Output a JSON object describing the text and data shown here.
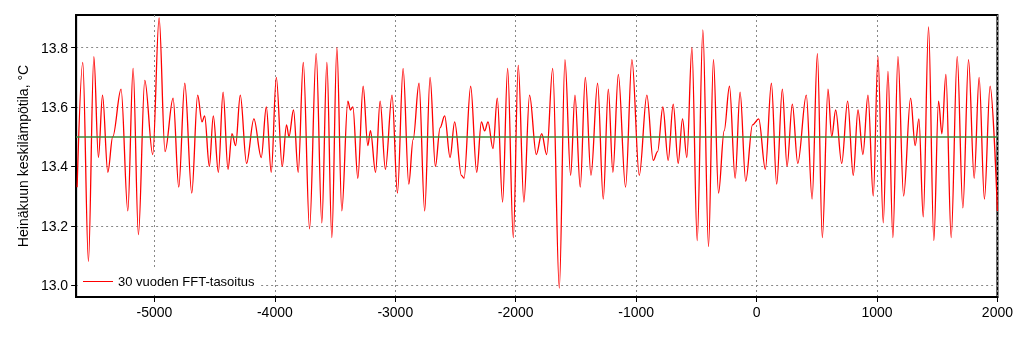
{
  "chart_data": {
    "type": "line",
    "ylabel": "Heinäkuun keskilämpötila, °C",
    "xlim": [
      -5650,
      2000
    ],
    "xticks": [
      -5000,
      -4000,
      -3000,
      -2000,
      -1000,
      0,
      1000,
      2000
    ],
    "ylim": [
      12.96,
      13.91
    ],
    "yticks": [
      {
        "value": 13,
        "label": "13.0"
      },
      13.2,
      13.4,
      13.6,
      13.8
    ],
    "grid": true,
    "legend": "bottom left",
    "marker": "none",
    "line_style": "solid",
    "ref_lines": [
      {
        "axis": "y",
        "value": 13.5,
        "color": "#3a8a3a",
        "line_style": "solid"
      }
    ],
    "series": [
      {
        "name": "30 vuoden FFT-tasoitus",
        "color": "#ff0000",
        "x": [
          -5642,
          -5595,
          -5548,
          -5503,
          -5465,
          -5431,
          -5387,
          -5346,
          -5277,
          -5221,
          -5177,
          -5133,
          -5080,
          -5014,
          -4961,
          -4912,
          -4845,
          -4798,
          -4748,
          -4690,
          -4641,
          -4605,
          -4583,
          -4544,
          -4511,
          -4469,
          -4430,
          -4389,
          -4356,
          -4326,
          -4287,
          -4235,
          -4174,
          -4113,
          -4071,
          -4030,
          -3988,
          -3939,
          -3903,
          -3883,
          -3845,
          -3806,
          -3764,
          -3712,
          -3657,
          -3610,
          -3568,
          -3527,
          -3485,
          -3444,
          -3394,
          -3372,
          -3352,
          -3311,
          -3267,
          -3228,
          -3206,
          -3164,
          -3126,
          -3082,
          -3027,
          -2982,
          -2935,
          -2888,
          -2852,
          -2803,
          -2756,
          -2711,
          -2667,
          -2628,
          -2590,
          -2545,
          -2507,
          -2451,
          -2429,
          -2374,
          -2324,
          -2285,
          -2258,
          -2230,
          -2189,
          -2153,
          -2109,
          -2067,
          -2020,
          -1979,
          -1932,
          -1885,
          -1829,
          -1784,
          -1743,
          -1693,
          -1638,
          -1591,
          -1544,
          -1508,
          -1464,
          -1422,
          -1375,
          -1320,
          -1273,
          -1231,
          -1193,
          -1148,
          -1088,
          -1035,
          -974,
          -911,
          -858,
          -822,
          -778,
          -734,
          -692,
          -651,
          -615,
          -579,
          -537,
          -493,
          -446,
          -399,
          -358,
          -316,
          -269,
          -225,
          -178,
          -137,
          -90,
          -34,
          18,
          73,
          123,
          167,
          214,
          253,
          297,
          342,
          413,
          461,
          505,
          546,
          593,
          624,
          657,
          707,
          756,
          803,
          842,
          883,
          925,
          969,
          1008,
          1052,
          1091,
          1132,
          1174,
          1221,
          1279,
          1317,
          1348,
          1384,
          1428,
          1472,
          1511,
          1539,
          1572,
          1616,
          1666,
          1713,
          1760,
          1807,
          1848,
          1892,
          1939,
          2000
        ],
        "values": [
          13.33,
          13.75,
          13.08,
          13.77,
          13.43,
          13.64,
          13.38,
          13.5,
          13.66,
          13.25,
          13.73,
          13.17,
          13.69,
          13.44,
          13.9,
          13.45,
          13.63,
          13.33,
          13.68,
          13.31,
          13.64,
          13.55,
          13.57,
          13.4,
          13.57,
          13.38,
          13.65,
          13.39,
          13.51,
          13.47,
          13.64,
          13.41,
          13.56,
          13.43,
          13.6,
          13.38,
          13.7,
          13.4,
          13.54,
          13.5,
          13.59,
          13.38,
          13.75,
          13.19,
          13.78,
          13.21,
          13.75,
          13.16,
          13.8,
          13.25,
          13.62,
          13.59,
          13.6,
          13.36,
          13.67,
          13.47,
          13.52,
          13.38,
          13.62,
          13.39,
          13.64,
          13.31,
          13.73,
          13.34,
          13.49,
          13.68,
          13.25,
          13.7,
          13.4,
          13.53,
          13.57,
          13.43,
          13.55,
          13.37,
          13.36,
          13.67,
          13.38,
          13.55,
          13.52,
          13.55,
          13.46,
          13.63,
          13.28,
          13.73,
          13.16,
          13.74,
          13.28,
          13.64,
          13.44,
          13.51,
          13.44,
          13.73,
          12.99,
          13.76,
          13.37,
          13.64,
          13.33,
          13.7,
          13.37,
          13.68,
          13.29,
          13.66,
          13.38,
          13.71,
          13.33,
          13.76,
          13.37,
          13.64,
          13.42,
          13.45,
          13.6,
          13.42,
          13.61,
          13.41,
          13.56,
          13.43,
          13.8,
          13.15,
          13.86,
          13.13,
          13.76,
          13.31,
          13.52,
          13.67,
          13.36,
          13.65,
          13.35,
          13.54,
          13.56,
          13.39,
          13.68,
          13.34,
          13.66,
          13.4,
          13.61,
          13.41,
          13.64,
          13.29,
          13.78,
          13.16,
          13.66,
          13.5,
          13.59,
          13.41,
          13.62,
          13.37,
          13.59,
          13.44,
          13.64,
          13.3,
          13.77,
          13.21,
          13.72,
          13.16,
          13.77,
          13.3,
          13.63,
          13.47,
          13.56,
          13.23,
          13.87,
          13.15,
          13.62,
          13.51,
          13.71,
          13.16,
          13.77,
          13.26,
          13.76,
          13.36,
          13.7,
          13.29,
          13.67,
          13.25
        ]
      }
    ]
  }
}
